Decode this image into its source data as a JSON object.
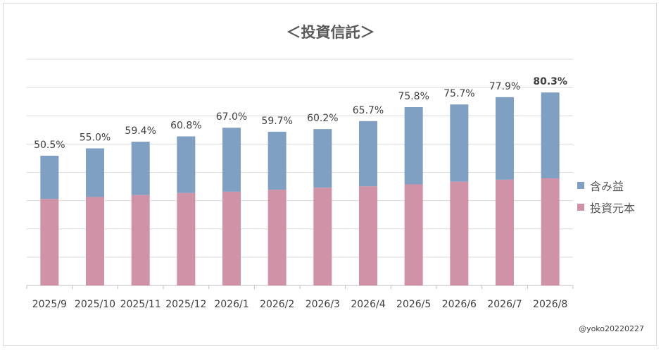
{
  "chart_data": {
    "type": "bar",
    "stacked": true,
    "title": "＜投資信託＞",
    "categories": [
      "2025/9",
      "2025/10",
      "2025/11",
      "2025/12",
      "2026/1",
      "2026/2",
      "2026/3",
      "2026/4",
      "2026/5",
      "2026/6",
      "2026/7",
      "2026/8"
    ],
    "series": [
      {
        "name": "投資元本",
        "color": "#cf92a6",
        "values": [
          130,
          133,
          136,
          139,
          141,
          144,
          147,
          149,
          152,
          156,
          159,
          161
        ]
      },
      {
        "name": "含み益",
        "color": "#7f9fc3",
        "values": [
          65,
          73,
          80,
          85,
          96,
          87,
          88,
          98,
          116,
          116,
          124,
          129
        ]
      }
    ],
    "labels": [
      "50.5%",
      "55.0%",
      "59.4%",
      "60.8%",
      "67.0%",
      "59.7%",
      "60.2%",
      "65.7%",
      "75.8%",
      "75.7%",
      "77.9%",
      "80.3%"
    ],
    "bold_label_index": 11,
    "ylim": [
      0,
      340
    ],
    "grid": true,
    "legend": "right"
  },
  "credit": "@yoko20220227"
}
